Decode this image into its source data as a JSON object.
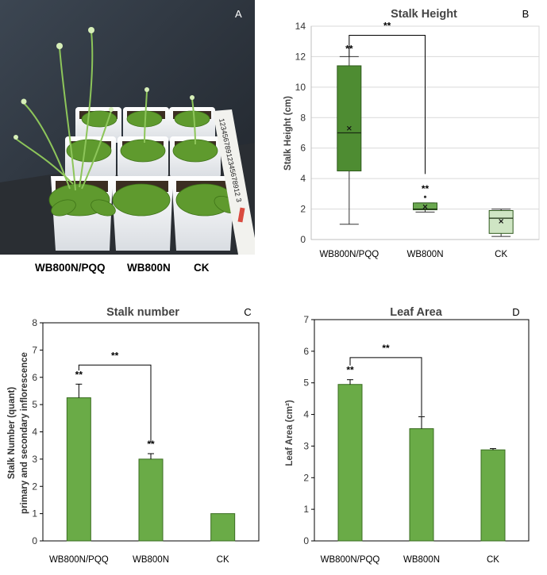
{
  "photo": {
    "panel_letter": "A",
    "ruler_text": "12345678912345678912 3",
    "labels": [
      "WB800N/PQQ",
      "WB800N",
      "CK"
    ]
  },
  "chart_data": [
    {
      "id": "B",
      "type": "box",
      "panel_letter": "B",
      "title": "Stalk Height",
      "ylabel": "Stalk Height (cm)",
      "xlabel": "",
      "ylim": [
        0,
        14
      ],
      "yticks": [
        0,
        2,
        4,
        6,
        8,
        10,
        12,
        14
      ],
      "grid": true,
      "categories": [
        "WB800N/PQQ",
        "WB800N",
        "CK"
      ],
      "boxes": [
        {
          "min": 1.0,
          "q1": 4.5,
          "median": 7.0,
          "q3": 11.4,
          "max": 12.0,
          "mean": 7.3,
          "fill": "#4e8c32"
        },
        {
          "min": 1.8,
          "q1": 1.95,
          "median": 2.0,
          "q3": 2.4,
          "max": 2.4,
          "mean": 2.15,
          "outlier": 2.8,
          "fill": "#6aa84f"
        },
        {
          "min": 0.2,
          "q1": 0.4,
          "median": 1.4,
          "q3": 1.9,
          "max": 2.0,
          "mean": 1.2,
          "fill": "#cfe5c4"
        }
      ],
      "significance": [
        {
          "category": 0,
          "y": 12.0,
          "label": "**"
        },
        {
          "category": 1,
          "y": 2.8,
          "label": "**"
        }
      ],
      "bracket": {
        "from": 0,
        "to": 1,
        "y": 13.4,
        "drop_to": [
          12.0,
          4.3
        ],
        "label": "**"
      }
    },
    {
      "id": "C",
      "type": "bar",
      "panel_letter": "C",
      "title": "Stalk number",
      "ylabel_lines": [
        "Stalk Number (quant)",
        "primary and secondary inflorescence"
      ],
      "xlabel": "",
      "ylim": [
        0,
        8
      ],
      "yticks": [
        0,
        1,
        2,
        3,
        4,
        5,
        6,
        7,
        8
      ],
      "grid": false,
      "categories": [
        "WB800N/PQQ",
        "WB800N",
        "CK"
      ],
      "values": [
        5.25,
        3.0,
        1.0
      ],
      "errors": [
        0.5,
        0.2,
        0.0
      ],
      "bar_color": "#6aab47",
      "significance": [
        {
          "category": 0,
          "label": "**"
        },
        {
          "category": 1,
          "label": "**"
        }
      ],
      "bracket": {
        "from": 0,
        "to": 1,
        "y": 6.45,
        "drop_to": [
          6.25,
          3.6
        ],
        "label": "**"
      }
    },
    {
      "id": "D",
      "type": "bar",
      "panel_letter": "D",
      "title": "Leaf Area",
      "ylabel": "Leaf Area (cm²)",
      "xlabel": "",
      "ylim": [
        0,
        7
      ],
      "yticks": [
        0,
        1,
        2,
        3,
        4,
        5,
        6,
        7
      ],
      "grid": false,
      "categories": [
        "WB800N/PQQ",
        "WB800N",
        "CK"
      ],
      "values": [
        4.95,
        3.55,
        2.88
      ],
      "errors": [
        0.15,
        0.38,
        0.04
      ],
      "bar_color": "#6aab47",
      "significance": [
        {
          "category": 0,
          "label": "**"
        }
      ],
      "bracket": {
        "from": 0,
        "to": 1,
        "y": 5.8,
        "drop_to": [
          5.55,
          3.95
        ],
        "label": "**"
      }
    }
  ]
}
